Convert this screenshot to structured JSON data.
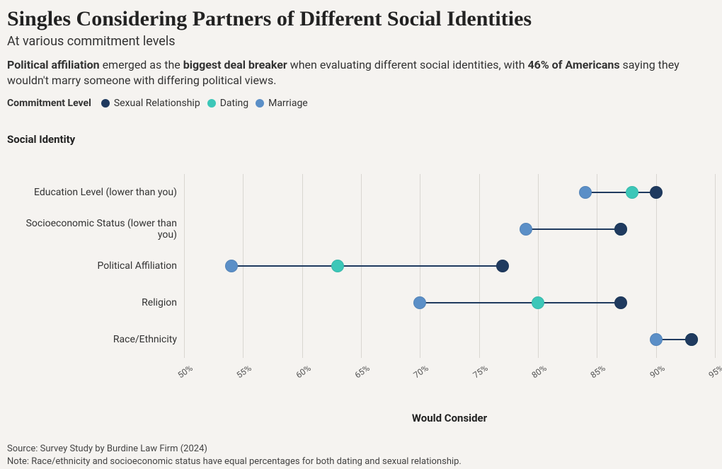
{
  "title": "Singles Considering Partners of Different Social Identities",
  "subtitle": "At various commitment levels",
  "description": {
    "prefix_bold": "Political affiliation",
    "mid1": " emerged as the ",
    "mid_bold": "biggest deal breaker",
    "mid2": " when evaluating different social identities, with ",
    "stat_bold": "46% of Americans",
    "suffix": " saying they wouldn't marry someone with differing political views."
  },
  "legend": {
    "title": "Commitment Level",
    "items": [
      {
        "label": "Sexual Relationship",
        "color": "#1f3a5f"
      },
      {
        "label": "Dating",
        "color": "#3cc7b8"
      },
      {
        "label": "Marriage",
        "color": "#5b8fc7"
      }
    ]
  },
  "axis": {
    "y_title": "Social Identity",
    "x_title": "Would Consider",
    "x_min": 50,
    "x_max": 95,
    "x_step": 5
  },
  "colors": {
    "sexual": "#1f3a5f",
    "dating": "#3cc7b8",
    "marriage": "#5b8fc7",
    "grid": "#d9d6d1",
    "line": "#1f3a5f",
    "bg": "#f5f3f0"
  },
  "rows": [
    {
      "label": "Education Level (lower than you)",
      "sexual": 90,
      "dating": 88,
      "marriage": 84
    },
    {
      "label": "Socioeconomic Status (lower than you)",
      "sexual": 87,
      "dating": 87,
      "marriage": 79
    },
    {
      "label": "Political Affiliation",
      "sexual": 77,
      "dating": 63,
      "marriage": 54
    },
    {
      "label": "Religion",
      "sexual": 87,
      "dating": 80,
      "marriage": 70
    },
    {
      "label": "Race/Ethnicity",
      "sexual": 93,
      "dating": 93,
      "marriage": 90
    }
  ],
  "footer": {
    "source": "Source: Survey Study by Burdine Law Firm (2024)",
    "note": "Note: Race/ethnicity and socioeconomic status have equal percentages for both dating and sexual relationship."
  }
}
